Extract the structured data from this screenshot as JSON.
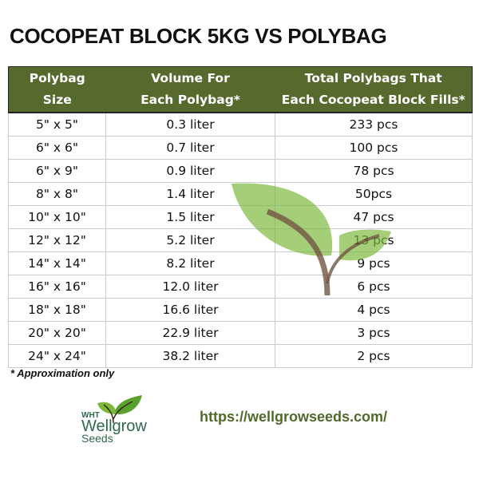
{
  "title": "COCOPEAT BLOCK 5KG VS POLYBAG",
  "table": {
    "headers": [
      [
        "Polybag",
        "Size"
      ],
      [
        "Volume For",
        "Each Polybag*"
      ],
      [
        "Total Polybags That",
        "Each Cocopeat Block Fills*"
      ]
    ],
    "rows": [
      [
        "5\" x 5\"",
        "0.3 liter",
        "233 pcs"
      ],
      [
        "6\" x 6\"",
        "0.7 liter",
        "100 pcs"
      ],
      [
        "6\" x 9\"",
        "0.9 liter",
        "78 pcs"
      ],
      [
        "8\" x 8\"",
        "1.4 liter",
        "50pcs"
      ],
      [
        "10\" x 10\"",
        "1.5 liter",
        "47 pcs"
      ],
      [
        "12\" x 12\"",
        "5.2 liter",
        "13 pcs"
      ],
      [
        "14\" x 14\"",
        "8.2 liter",
        "9 pcs"
      ],
      [
        "16\" x 16\"",
        "12.0 liter",
        "6 pcs"
      ],
      [
        "18\" x 18\"",
        "16.6 liter",
        "4 pcs"
      ],
      [
        "20\" x 20\"",
        "22.9 liter",
        "3 pcs"
      ],
      [
        "24\" x 24\"",
        "38.2 liter",
        "2 pcs"
      ]
    ]
  },
  "note": "* Approximation only",
  "logo": {
    "line1": "WHT",
    "line2": "Wellgrow",
    "line3": "Seeds"
  },
  "url": "https://wellgrowseeds.com/",
  "colors": {
    "header_bg": "#566a2e",
    "url": "#4f6a2a",
    "logo": "#2f6a4a"
  }
}
